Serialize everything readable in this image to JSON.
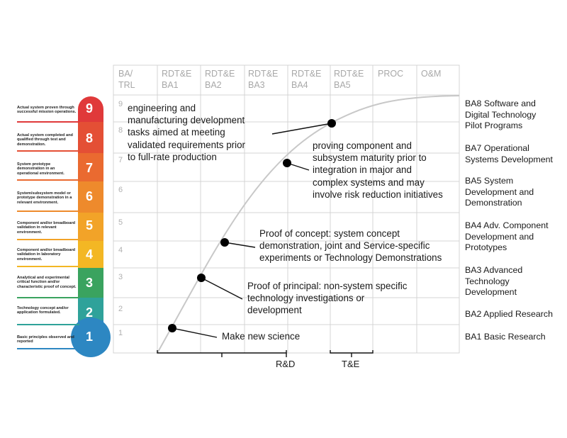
{
  "header": {
    "col0": "BA/\nTRL",
    "cols": [
      "RDT&E\nBA1",
      "RDT&E\nBA2",
      "RDT&E\nBA3",
      "RDT&E\nBA4",
      "RDT&E\nBA5",
      "PROC",
      "O&M"
    ]
  },
  "trl_levels": [
    {
      "n": "9",
      "label": "Actual system proven through successful mission operations.",
      "color": "#e0393a"
    },
    {
      "n": "8",
      "label": "Actual system completed and qualified through test and demonstration.",
      "color": "#e44f35"
    },
    {
      "n": "7",
      "label": "System prototype demonstration in an operational environment.",
      "color": "#ea6a30"
    },
    {
      "n": "6",
      "label": "System/subsystem model or prototype demonstration in a relevant environment.",
      "color": "#ee8a2c"
    },
    {
      "n": "5",
      "label": "Component and/or breadboard validation in relevant environment.",
      "color": "#f2a328"
    },
    {
      "n": "4",
      "label": "Component and/or breadboard validation in laboratory environment.",
      "color": "#f3b724"
    },
    {
      "n": "3",
      "label": "Analytical and experimental critical function and/or characteristic proof of concept.",
      "color": "#3aa35f"
    },
    {
      "n": "2",
      "label": "Technology concept and/or application formulated.",
      "color": "#2fa29a"
    },
    {
      "n": "1",
      "label": "Basic principles observed and reported",
      "color": "#2d87c2"
    }
  ],
  "row_numbers": [
    "9",
    "8",
    "7",
    "6",
    "5",
    "4",
    "3",
    "2",
    "1"
  ],
  "annotations": {
    "a_row9": "engineering and\nmanufacturing development\ntasks aimed at meeting\nvalidated requirements prior\nto full-rate production",
    "a_row7": "proving component and\nsubsystem maturity prior to\nintegration in major and\ncomplex systems and may\ninvolve risk reduction initiatives",
    "a_row4": "Proof of concept: system concept\ndemonstration, joint and Service-specific\nexperiments or Technology Demonstrations",
    "a_row3": "Proof of principal: non-system specific\ntechnology investigations or\ndevelopment",
    "a_row1": "Make new science"
  },
  "ba_labels": {
    "ba8": "BA8 Software and\nDigital Technology\nPilot Programs",
    "ba7": "BA7 Operational\nSystems Development",
    "ba5": "BA5 System\nDevelopment and\nDemonstration",
    "ba4": "BA4 Adv. Component\nDevelopment and\nPrototypes",
    "ba3": "BA3 Advanced\nTechnology\nDevelopment",
    "ba2": "BA2 Applied Research",
    "ba1": "BA1 Basic Research"
  },
  "bottom": {
    "rd": "R&D",
    "te": "T&E"
  },
  "colors": {
    "grid": "#d4d4d4",
    "curve": "#c8c8c8",
    "header_text": "#a8a8a8"
  }
}
